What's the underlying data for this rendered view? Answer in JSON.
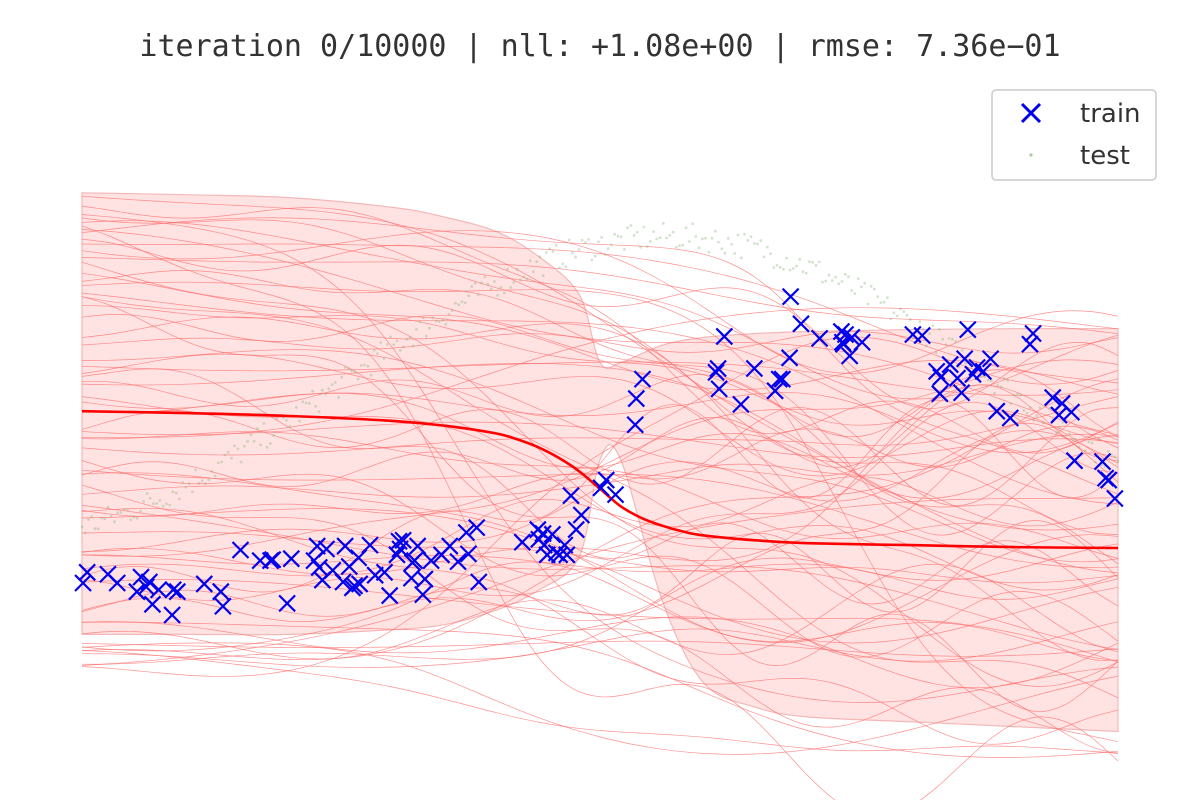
{
  "chart_data": {
    "type": "line",
    "title": "iteration 0/10000  |  nll: +1.08e+00  |  rmse: 7.36e−01",
    "xlabel": "",
    "ylabel": "",
    "xlim": [
      0,
      1
    ],
    "ylim": [
      -3.7,
      3.1
    ],
    "axes_visible": false,
    "grid": false,
    "legend": {
      "placement": "top-right",
      "entries": [
        {
          "label": "train",
          "marker": "x",
          "color": "#0000ee"
        },
        {
          "label": "test",
          "marker": ".",
          "color": "#aac9a0"
        }
      ]
    },
    "colors": {
      "mean": "#ff0000",
      "band_fill": "#ffdddd",
      "band_edge": "#f3b8b8",
      "samples": "#ff6b6b",
      "train": "#0000ee",
      "test": "#7fae72"
    },
    "mean_curve": {
      "x": [
        0.0,
        0.1,
        0.2,
        0.3,
        0.35,
        0.4,
        0.42,
        0.44,
        0.46,
        0.48,
        0.5,
        0.52,
        0.54,
        0.56,
        0.58,
        0.6,
        0.65,
        0.7,
        0.8,
        0.9,
        1.0
      ],
      "y": [
        0.1,
        0.08,
        0.05,
        0.0,
        -0.05,
        -0.13,
        -0.19,
        -0.27,
        -0.38,
        -0.52,
        -0.7,
        -0.88,
        -1.0,
        -1.08,
        -1.14,
        -1.18,
        -1.23,
        -1.26,
        -1.28,
        -1.3,
        -1.31
      ]
    },
    "uncertainty_band": {
      "x": [
        0.0,
        0.1,
        0.2,
        0.3,
        0.35,
        0.4,
        0.44,
        0.48,
        0.5,
        0.52,
        0.56,
        0.6,
        0.65,
        0.7,
        0.8,
        0.9,
        1.0
      ],
      "upper": [
        2.35,
        2.33,
        2.3,
        2.2,
        2.1,
        1.95,
        1.7,
        1.3,
        0.6,
        0.6,
        0.78,
        0.86,
        0.9,
        0.92,
        0.94,
        0.95,
        0.95
      ],
      "lower": [
        -2.2,
        -2.2,
        -2.2,
        -2.15,
        -2.1,
        -1.95,
        -1.75,
        -1.4,
        -0.4,
        -0.4,
        -1.85,
        -2.7,
        -2.95,
        -3.05,
        -3.1,
        -3.15,
        -3.2
      ]
    },
    "series": [
      {
        "name": "train",
        "type": "scatter",
        "marker": "x",
        "x": [
          0.001,
          0.005,
          0.025,
          0.034,
          0.053,
          0.057,
          0.062,
          0.065,
          0.068,
          0.074,
          0.087,
          0.088,
          0.092,
          0.118,
          0.134,
          0.136,
          0.153,
          0.172,
          0.182,
          0.184,
          0.198,
          0.202,
          0.224,
          0.227,
          0.229,
          0.232,
          0.236,
          0.242,
          0.252,
          0.254,
          0.258,
          0.261,
          0.263,
          0.267,
          0.268,
          0.278,
          0.283,
          0.292,
          0.297,
          0.304,
          0.306,
          0.307,
          0.31,
          0.318,
          0.319,
          0.321,
          0.324,
          0.329,
          0.331,
          0.337,
          0.347,
          0.355,
          0.363,
          0.371,
          0.373,
          0.381,
          0.383,
          0.425,
          0.44,
          0.441,
          0.445,
          0.446,
          0.449,
          0.454,
          0.458,
          0.461,
          0.466,
          0.468,
          0.472,
          0.477,
          0.482,
          0.501,
          0.506,
          0.515,
          0.534,
          0.535,
          0.541,
          0.612,
          0.614,
          0.615,
          0.62,
          0.636,
          0.649,
          0.669,
          0.673,
          0.676,
          0.683,
          0.684,
          0.694,
          0.712,
          0.733,
          0.734,
          0.735,
          0.737,
          0.741,
          0.743,
          0.753,
          0.802,
          0.811,
          0.825,
          0.828,
          0.829,
          0.838,
          0.845,
          0.849,
          0.852,
          0.855,
          0.86,
          0.864,
          0.87,
          0.877,
          0.883,
          0.896,
          0.915,
          0.918,
          0.937,
          0.943,
          0.946,
          0.955,
          0.958,
          0.985,
          0.988,
          0.991,
          0.997
        ],
        "y": [
          -1.67,
          -1.56,
          -1.58,
          -1.67,
          -1.76,
          -1.61,
          -1.71,
          -1.66,
          -1.89,
          -1.74,
          -2.0,
          -1.74,
          -1.76,
          -1.68,
          -1.76,
          -1.91,
          -1.33,
          -1.44,
          -1.44,
          -1.43,
          -1.88,
          -1.42,
          -1.44,
          -1.29,
          -1.51,
          -1.64,
          -1.32,
          -1.54,
          -1.66,
          -1.29,
          -1.5,
          -1.72,
          -1.7,
          -1.41,
          -1.68,
          -1.28,
          -1.59,
          -1.56,
          -1.8,
          -1.38,
          -1.24,
          -1.32,
          -1.23,
          -1.62,
          -1.46,
          -1.44,
          -1.29,
          -1.79,
          -1.63,
          -1.44,
          -1.38,
          -1.29,
          -1.45,
          -1.15,
          -1.37,
          -1.1,
          -1.66,
          -1.25,
          -1.12,
          -1.22,
          -1.16,
          -1.28,
          -1.38,
          -1.17,
          -1.36,
          -1.38,
          -1.28,
          -1.38,
          -0.77,
          -1.12,
          -0.97,
          -0.69,
          -0.61,
          -0.76,
          -0.04,
          0.23,
          0.43,
          0.5,
          0.54,
          0.33,
          0.87,
          0.17,
          0.54,
          0.31,
          0.43,
          0.43,
          0.65,
          1.28,
          1.0,
          0.85,
          0.92,
          0.81,
          0.79,
          0.89,
          0.67,
          0.86,
          0.81,
          0.89,
          0.88,
          0.51,
          0.28,
          0.45,
          0.58,
          0.44,
          0.29,
          0.64,
          0.94,
          0.48,
          0.55,
          0.51,
          0.64,
          0.1,
          0.03,
          0.79,
          0.9,
          0.24,
          0.06,
          0.18,
          0.09,
          -0.41,
          -0.42,
          -0.59,
          -0.61,
          -0.8
        ],
        "color": "#0000ee"
      },
      {
        "name": "test",
        "type": "scatter",
        "marker": ".",
        "function": "smooth sinusoidal curve (noisy samples along the latent function)",
        "color": "#7fae72"
      }
    ]
  }
}
